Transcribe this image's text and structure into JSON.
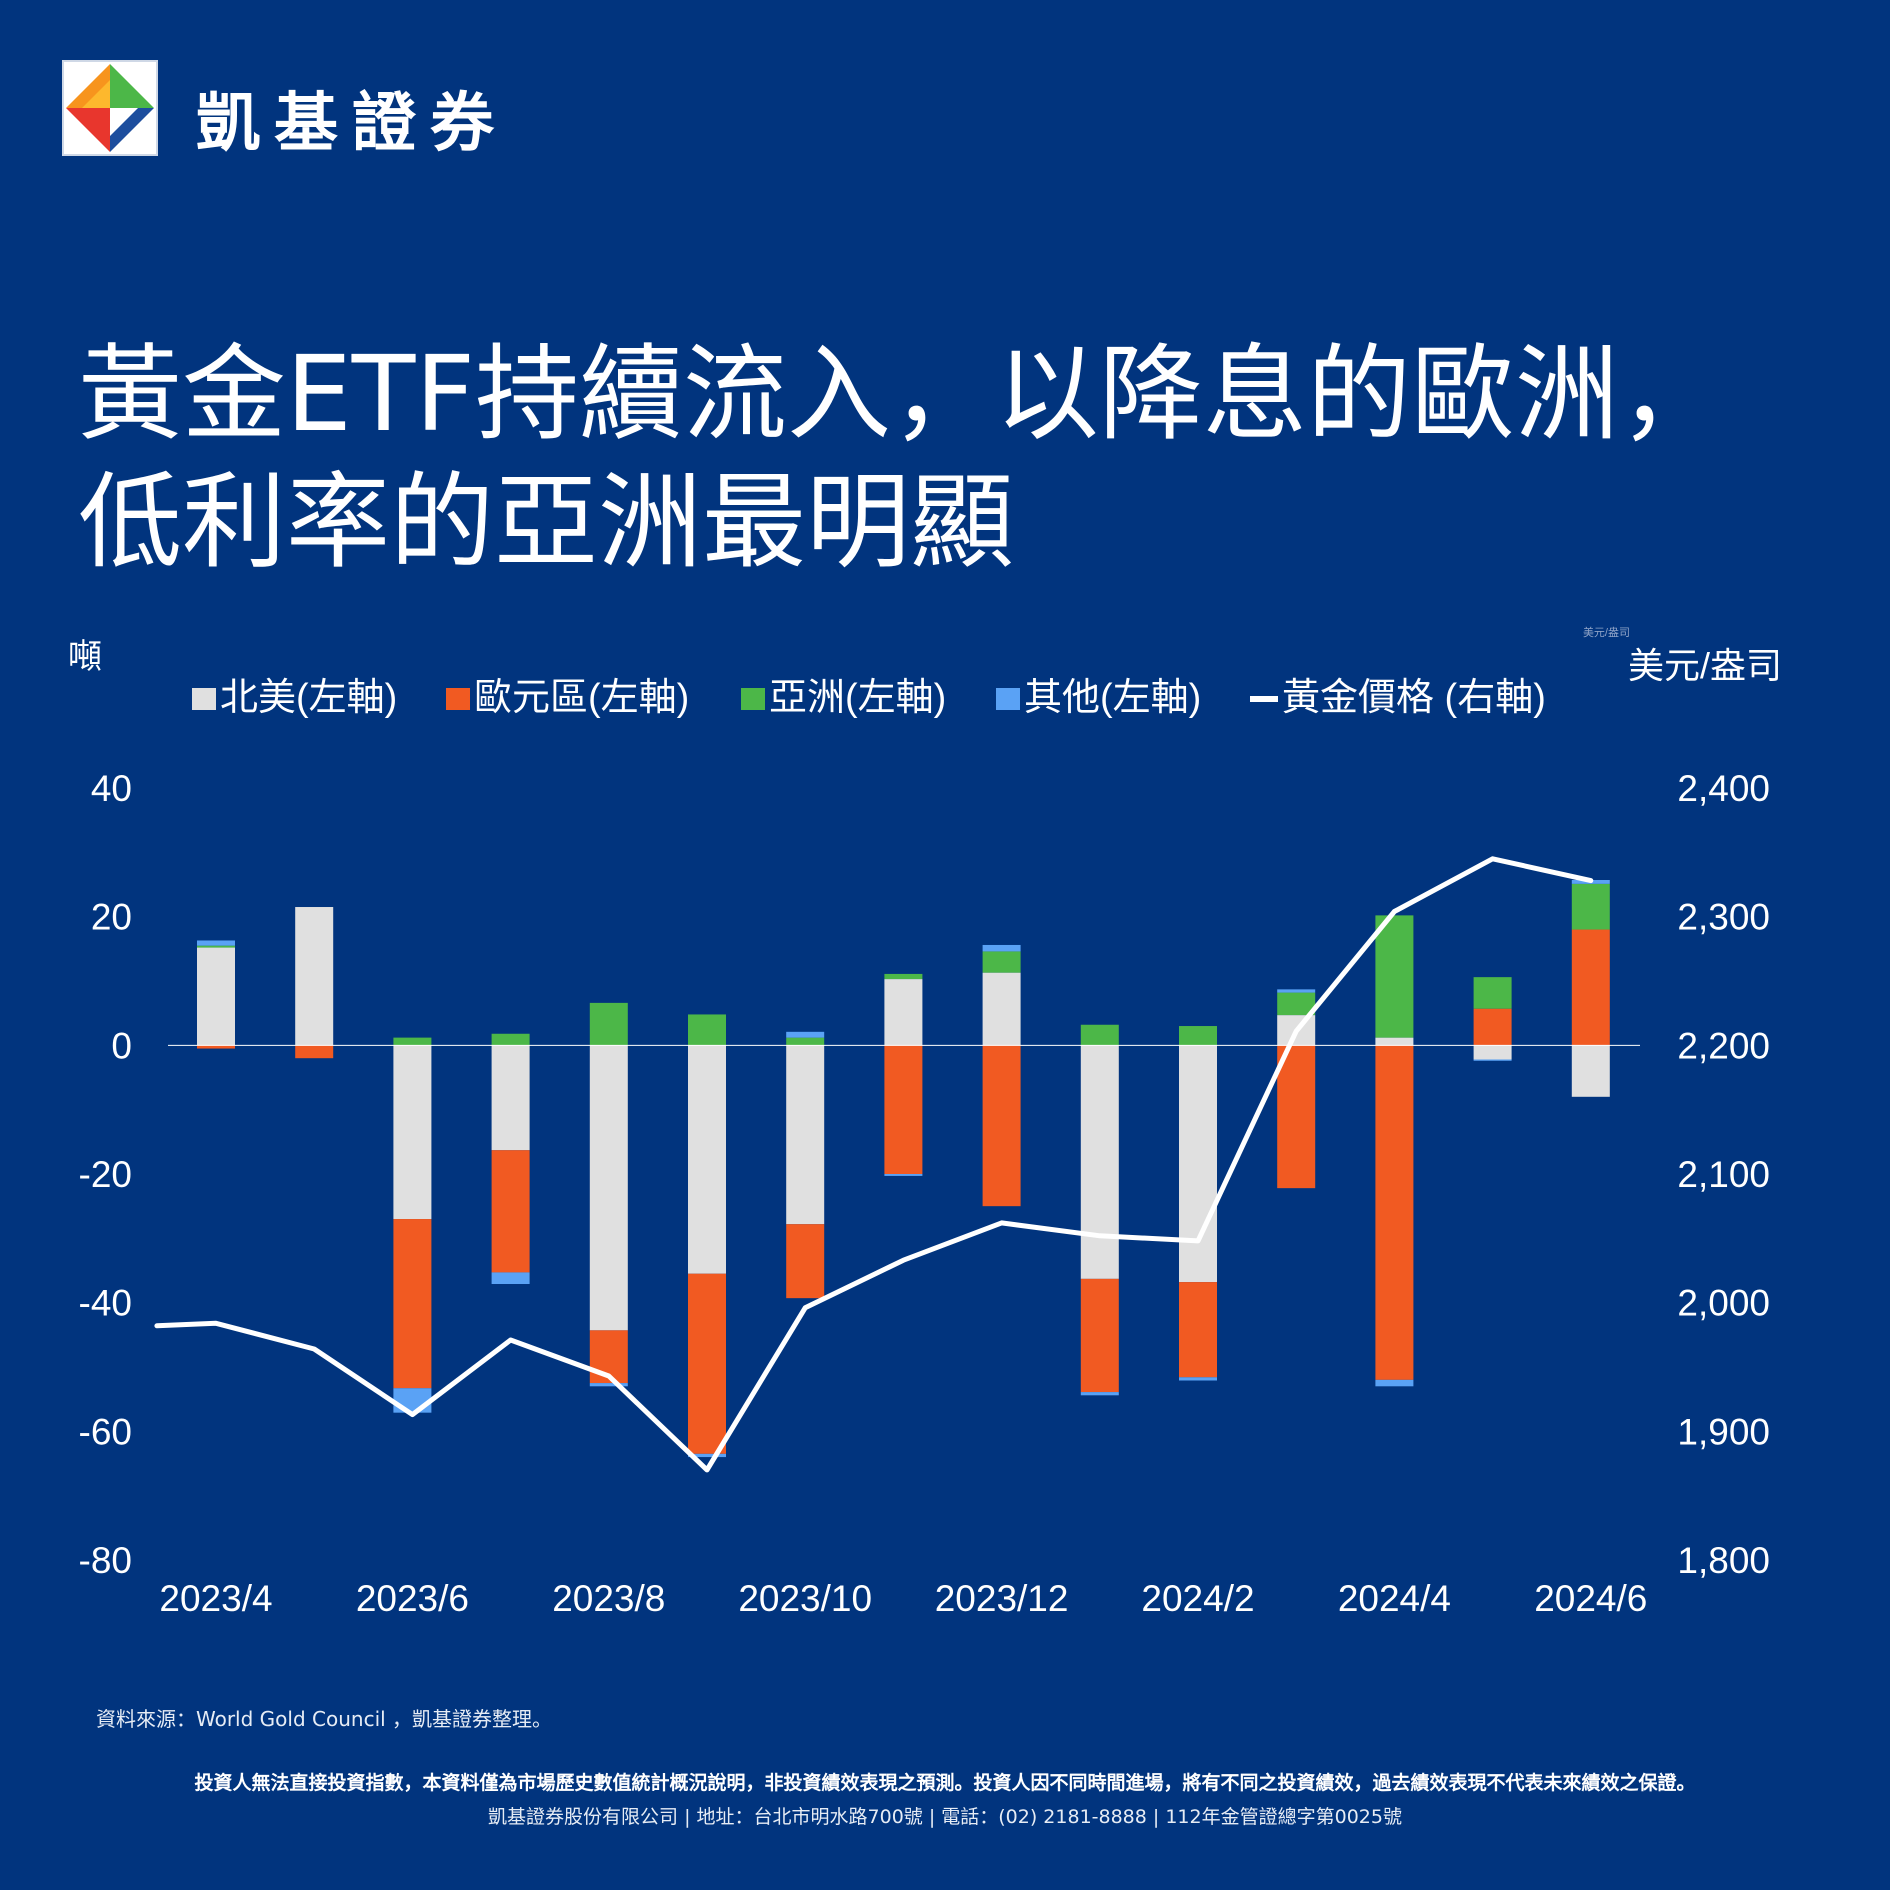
{
  "brand": {
    "name": "凱基證券"
  },
  "title": {
    "line1": "黃金ETF持續流入，以降息的歐洲，",
    "line2": "低利率的亞洲最明顯"
  },
  "chart_data": {
    "type": "bar",
    "stacked": true,
    "left_axis_label": "噸",
    "right_axis_label": "美元/盎司",
    "right_axis_label_small": "美元/盎司",
    "left_ylim": [
      -80,
      40
    ],
    "left_ticks": [
      "40",
      "20",
      "0",
      "-20",
      "-40",
      "-60",
      "-80"
    ],
    "right_ylim": [
      1800,
      2400
    ],
    "right_ticks": [
      "2,400",
      "2,300",
      "2,200",
      "2,100",
      "2,000",
      "1,900",
      "1,800"
    ],
    "categories": [
      "2023/4",
      "2023/5",
      "2023/6",
      "2023/7",
      "2023/8",
      "2023/9",
      "2023/10",
      "2023/11",
      "2023/12",
      "2024/1",
      "2024/2",
      "2024/3",
      "2024/4",
      "2024/5",
      "2024/6"
    ],
    "x_tick_labels": [
      "2023/4",
      "2023/6",
      "2023/8",
      "2023/10",
      "2023/12",
      "2024/2",
      "2024/4",
      "2024/6"
    ],
    "x_tick_index": [
      0,
      2,
      4,
      6,
      8,
      10,
      12,
      14
    ],
    "series": [
      {
        "name": "北美(左軸)",
        "color": "#e0e0e0",
        "values": [
          15.2,
          21.5,
          -27,
          -16.3,
          -44.3,
          -35.5,
          -27.8,
          10.3,
          11.3,
          -36.3,
          -36.8,
          4.7,
          1.2,
          -2.2,
          -8
        ]
      },
      {
        "name": "歐元區(左軸)",
        "color": "#f15a22",
        "values": [
          -0.5,
          -2,
          -26.3,
          -19,
          -8.2,
          -28,
          -11.5,
          -20,
          -25,
          -17.6,
          -14.8,
          -22.2,
          -52,
          5.7,
          18
        ]
      },
      {
        "name": "亞洲(左軸)",
        "color": "#4cb748",
        "values": [
          0.3,
          0,
          1.2,
          1.8,
          6.6,
          4.8,
          1.2,
          0.8,
          3.3,
          3.2,
          3,
          3.5,
          19,
          4.9,
          7.1
        ]
      },
      {
        "name": "其他(左軸)",
        "color": "#5aa2f5",
        "values": [
          0.8,
          0,
          -3.8,
          -1.8,
          -0.5,
          -0.5,
          0.9,
          -0.3,
          1,
          -0.5,
          -0.5,
          0.5,
          -1,
          -0.2,
          0.6
        ]
      }
    ],
    "line_series": {
      "name": "黃金價格 (右軸)",
      "color": "#ffffff",
      "x": [
        -0.5,
        0,
        1,
        2,
        3,
        4,
        5,
        6,
        7,
        8,
        9,
        10,
        11,
        12,
        13,
        14
      ],
      "values": [
        1982,
        1984,
        1964,
        1913,
        1971,
        1943,
        1870,
        1996,
        2033,
        2062,
        2052,
        2048,
        2211,
        2304,
        2345,
        2328
      ]
    }
  },
  "footer": {
    "source": "資料來源：World Gold Council ，凱基證券整理。",
    "disclaimer": "投資人無法直接投資指數，本資料僅為市場歷史數值統計概況說明，非投資績效表現之預測。投資人因不同時間進場，將有不同之投資績效，過去績效表現不代表未來績效之保證。",
    "company": "凱基證券股份有限公司 | 地址：台北市明水路700號 | 電話：(02) 2181-8888 | 112年金管證總字第0025號"
  }
}
